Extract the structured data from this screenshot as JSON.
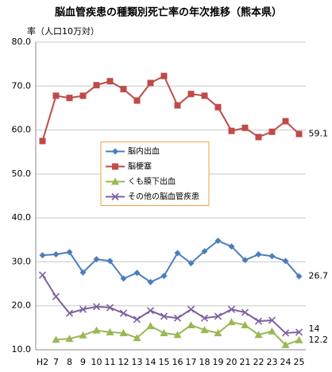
{
  "chart_data": {
    "type": "line",
    "title": "脳血管疾患の種類別死亡率の年次推移（熊本県）",
    "y_label": "率（人口10万対）",
    "categories": [
      "H2",
      "7",
      "8",
      "9",
      "10",
      "11",
      "12",
      "13",
      "14",
      "15",
      "16",
      "17",
      "18",
      "19",
      "20",
      "21",
      "22",
      "23",
      "24",
      "25"
    ],
    "ylim": [
      10,
      80
    ],
    "yticks": [
      {
        "value": 10,
        "label": "10.0"
      },
      {
        "value": 20,
        "label": "20.0"
      },
      {
        "value": 30,
        "label": "30.0"
      },
      {
        "value": 40,
        "label": "40.0"
      },
      {
        "value": 50,
        "label": "50.0"
      },
      {
        "value": 60,
        "label": "60.0"
      },
      {
        "value": 70,
        "label": "70.0"
      },
      {
        "value": 80,
        "label": "80.0"
      }
    ],
    "grid": true,
    "legend": "center-left",
    "series": [
      {
        "name": "脳内出血",
        "color": "#4a7ebb",
        "marker": "diamond",
        "values": [
          31.5,
          31.7,
          32.2,
          27.6,
          30.6,
          30.2,
          26.2,
          27.5,
          25.4,
          26.8,
          32.0,
          29.7,
          32.4,
          34.8,
          33.5,
          30.4,
          31.7,
          31.3,
          30.2,
          26.7
        ],
        "value_labels": [
          null,
          null,
          null,
          null,
          null,
          null,
          null,
          null,
          null,
          null,
          null,
          null,
          null,
          null,
          null,
          null,
          null,
          null,
          null,
          "26.7"
        ]
      },
      {
        "name": "脳梗塞",
        "color": "#be4b48",
        "marker": "square",
        "values": [
          57.5,
          67.8,
          67.3,
          67.8,
          70.2,
          71.1,
          69.3,
          66.7,
          70.7,
          72.3,
          65.6,
          68.2,
          67.8,
          65.2,
          59.8,
          60.5,
          58.4,
          59.6,
          62.0,
          59.1
        ],
        "value_labels": [
          null,
          null,
          null,
          null,
          null,
          null,
          null,
          null,
          null,
          null,
          null,
          null,
          null,
          null,
          null,
          null,
          null,
          null,
          null,
          "59.1"
        ]
      },
      {
        "name": "くも膜下出血",
        "color": "#98b954",
        "marker": "triangle",
        "values": [
          null,
          12.3,
          12.5,
          13.3,
          14.4,
          14.0,
          13.8,
          12.7,
          15.4,
          13.8,
          13.4,
          15.6,
          14.5,
          13.8,
          16.3,
          15.6,
          13.4,
          14.2,
          11.1,
          12.2
        ],
        "value_labels": [
          null,
          null,
          null,
          null,
          null,
          null,
          null,
          null,
          null,
          null,
          null,
          null,
          null,
          null,
          null,
          null,
          null,
          null,
          null,
          "12.2"
        ]
      },
      {
        "name": "その他の脳血管疾患",
        "color": "#7d60a0",
        "marker": "x",
        "values": [
          27.0,
          22.1,
          18.3,
          19.2,
          19.8,
          19.6,
          18.3,
          16.9,
          18.9,
          17.6,
          17.2,
          19.2,
          17.2,
          17.6,
          19.2,
          18.5,
          16.5,
          16.7,
          13.8,
          14
        ],
        "value_labels": [
          null,
          null,
          null,
          null,
          null,
          null,
          null,
          null,
          null,
          null,
          null,
          null,
          null,
          null,
          null,
          null,
          null,
          null,
          null,
          "14"
        ]
      }
    ]
  }
}
